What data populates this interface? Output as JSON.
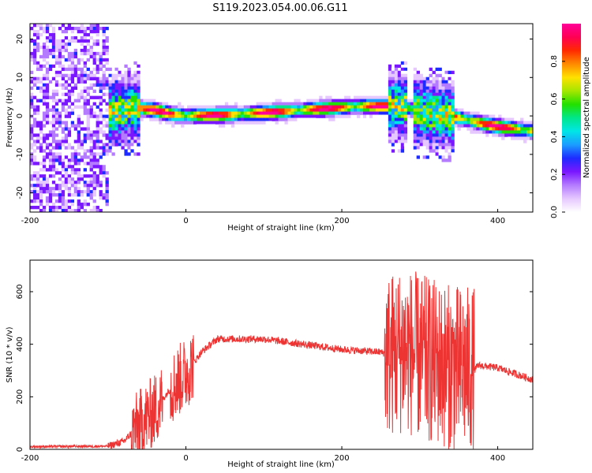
{
  "title": "S119.2023.054.00.06.G11",
  "chart_data": [
    {
      "type": "heatmap",
      "xlabel": "Height of straight line (km)",
      "ylabel": "Frequency (Hz)",
      "xlim": [
        -200,
        445
      ],
      "ylim": [
        -25,
        24
      ],
      "xticks": [
        -200,
        0,
        200,
        400
      ],
      "yticks": [
        -20,
        -10,
        0,
        10,
        20
      ],
      "colorbar": {
        "label": "Normalized spectral amplitude",
        "range": [
          0,
          1
        ],
        "ticks": [
          "0.0",
          "0.2",
          "0.4",
          "0.6",
          "0.8"
        ],
        "colors": [
          "#ffffff",
          "#e6c8ff",
          "#b47bff",
          "#7a17ff",
          "#1d2bff",
          "#1b9cff",
          "#00e6e6",
          "#00e68a",
          "#22e000",
          "#a5e600",
          "#ffe100",
          "#ff8a00",
          "#ff2a00",
          "#ff0055",
          "#ff0099"
        ]
      },
      "ridge": {
        "x": [
          -100,
          -80,
          -60,
          -40,
          -20,
          0,
          50,
          100,
          150,
          200,
          220,
          250,
          280,
          300,
          340,
          360,
          380,
          400,
          445
        ],
        "freq": [
          0.5,
          1.5,
          2.0,
          1.5,
          0.5,
          0.0,
          0.2,
          0.8,
          1.5,
          2.2,
          2.5,
          2.5,
          2.5,
          1.0,
          0.0,
          -1.0,
          -2.0,
          -2.8,
          -4.0
        ]
      },
      "noise_zones": [
        [
          -200,
          -100
        ],
        [
          -100,
          -60
        ],
        [
          260,
          285
        ],
        [
          290,
          345
        ]
      ]
    },
    {
      "type": "line",
      "xlabel": "Height of straight line (km)",
      "ylabel": "SNR (10 * v/v)",
      "xlim": [
        -200,
        445
      ],
      "ylim": [
        0,
        720
      ],
      "xticks": [
        -200,
        0,
        200,
        400
      ],
      "yticks": [
        0,
        200,
        400,
        600
      ],
      "color": "#ee3333",
      "envelope": {
        "x": [
          -200,
          -100,
          -80,
          -60,
          -40,
          -20,
          0,
          20,
          40,
          100,
          150,
          200,
          250,
          260,
          280,
          300,
          320,
          340,
          370,
          375,
          400,
          445
        ],
        "y": [
          10,
          12,
          30,
          90,
          150,
          230,
          290,
          370,
          420,
          420,
          400,
          380,
          370,
          360,
          380,
          350,
          330,
          310,
          300,
          320,
          310,
          265
        ]
      },
      "noisy_zones": [
        [
          -70,
          -30
        ],
        [
          -20,
          10
        ],
        [
          255,
          320
        ],
        [
          320,
          370
        ]
      ]
    }
  ]
}
